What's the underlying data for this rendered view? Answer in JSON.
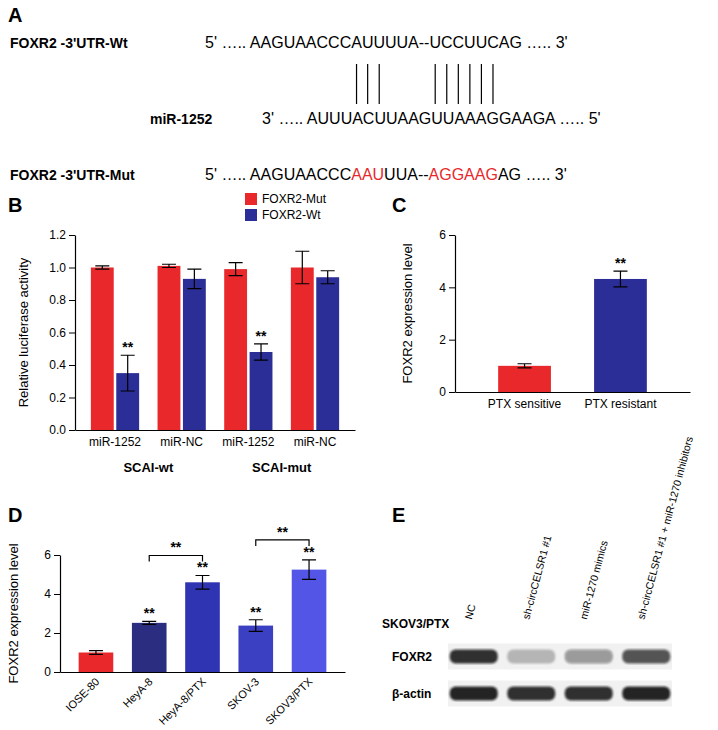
{
  "sequence_panel": {
    "title": "A",
    "wt": {
      "label": "FOXR2 -3'UTR-Wt",
      "sequence": "5' ….. AAGUAACCCAUUUUA--UCCUUCAG ….. 3'"
    },
    "mirna": {
      "label": "miR-1252",
      "sequence": "3' ….. AUUUACUUAAGUUAAAGGAAGA ….. 5'"
    },
    "mut": {
      "label": "FOXR2 -3'UTR-Mut",
      "color": "#e8282b",
      "segments": [
        {
          "text": "5' ….. AAGUAACCC",
          "mutated": false
        },
        {
          "text": "AAU",
          "mutated": true
        },
        {
          "text": "UUA--",
          "mutated": false
        },
        {
          "text": "AGGAAG",
          "mutated": true
        },
        {
          "text": "AG ….. 3'",
          "mutated": false
        }
      ]
    }
  },
  "chart_data": [
    {
      "type": "bar",
      "title": "B",
      "categories": [
        "miR-1252",
        "miR-NC",
        "miR-1252",
        "miR-NC"
      ],
      "group_labels": [
        "SCAI-wt",
        "SCAI-mut"
      ],
      "series": [
        {
          "name": "FOXR2-Mut",
          "color": "#e8282b",
          "values": [
            1.0,
            1.01,
            0.99,
            1.0
          ],
          "errors": [
            0.01,
            0.01,
            0.04,
            0.1
          ]
        },
        {
          "name": "FOXR2-Wt",
          "color": "#2b2e96",
          "values": [
            0.35,
            0.93,
            0.48,
            0.94
          ],
          "errors": [
            0.11,
            0.06,
            0.05,
            0.04
          ],
          "significance": [
            "**",
            null,
            "**",
            null
          ]
        }
      ],
      "ylabel": "Relative luciferase activity",
      "ylim": [
        0,
        1.2
      ],
      "yticks": [
        {
          "value": 0,
          "label": "0.0"
        },
        {
          "value": 0.2,
          "label": "0.2"
        },
        {
          "value": 0.4,
          "label": "0.4"
        },
        {
          "value": 0.6,
          "label": "0.6"
        },
        {
          "value": 0.8,
          "label": "0.8"
        },
        {
          "value": 1,
          "label": "1.0"
        },
        {
          "value": 1.2,
          "label": "1.2"
        }
      ],
      "legend": "upper right"
    },
    {
      "type": "bar",
      "title": "C",
      "categories": [
        "PTX sensitive",
        "PTX resistant"
      ],
      "values": [
        1.0,
        4.32
      ],
      "errors": [
        0.08,
        0.3
      ],
      "colors": [
        "#e8282b",
        "#2b2e96"
      ],
      "significance": [
        null,
        "**"
      ],
      "ylabel": "FOXR2 expression level",
      "ylim": [
        0,
        6
      ],
      "yticks": [
        0,
        2,
        4,
        6
      ]
    },
    {
      "type": "bar",
      "title": "D",
      "categories": [
        "IOSE-80",
        "HeyA-8",
        "HeyA-8/PTX",
        "SKOV-3",
        "SKOV3/PTX"
      ],
      "values": [
        1.0,
        2.52,
        4.6,
        2.38,
        5.25
      ],
      "errors": [
        0.1,
        0.08,
        0.35,
        0.3,
        0.5
      ],
      "colors": [
        "#e8282b",
        "#2b2e80",
        "#2e34b2",
        "#3b40c2",
        "#5355e6"
      ],
      "significance": [
        null,
        "**",
        "**",
        "**",
        "**"
      ],
      "comparisons": [
        {
          "from": 1,
          "to": 2,
          "label": "**"
        },
        {
          "from": 3,
          "to": 4,
          "label": "**"
        }
      ],
      "ylabel": "FOXR2 expression level",
      "ylim": [
        0,
        6
      ],
      "yticks": [
        0,
        2,
        4,
        6
      ]
    }
  ],
  "blot": {
    "title": "E",
    "cell_line": "SKOV3/PTX",
    "lanes": [
      "NC",
      "sh-circCELSR1 #1",
      "miR-1270 mimics",
      "sh-circCELSR1 #1 + miR-1270 inhibitors"
    ],
    "rows": [
      {
        "name": "FOXR2",
        "intensity": [
          0.85,
          0.25,
          0.4,
          0.7
        ]
      },
      {
        "name": "β-actin",
        "intensity": [
          0.9,
          0.85,
          0.85,
          0.9
        ]
      }
    ]
  }
}
